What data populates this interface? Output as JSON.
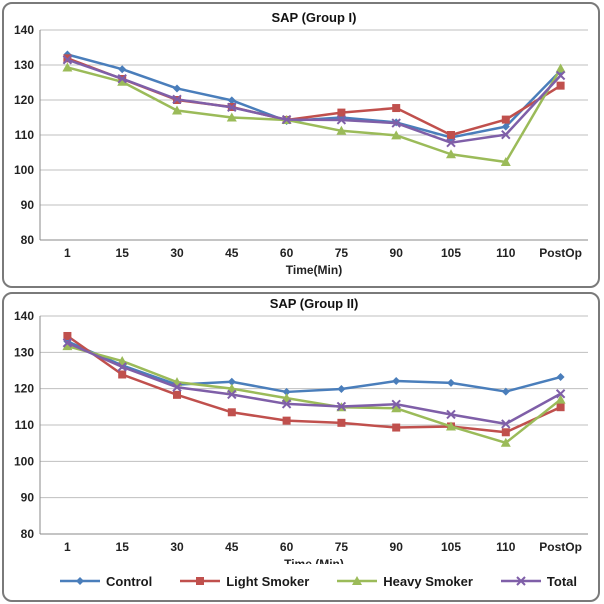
{
  "chart_data": [
    {
      "type": "line",
      "title": "SAP (Group I)",
      "xlabel": "Time(Min)",
      "ylabel": "",
      "categories": [
        "1",
        "15",
        "30",
        "45",
        "60",
        "75",
        "90",
        "105",
        "110",
        "PostOp"
      ],
      "ylim": [
        80,
        140
      ],
      "yticks": [
        80,
        90,
        100,
        110,
        120,
        130,
        140
      ],
      "grid": true,
      "series": [
        {
          "name": "Control",
          "color": "#4a7ebb",
          "marker": "diamond",
          "values": [
            133.0,
            128.8,
            123.3,
            119.9,
            114.0,
            115.0,
            113.6,
            109.3,
            112.4,
            128.4
          ]
        },
        {
          "name": "Light Smoker",
          "color": "#c0504d",
          "marker": "square",
          "values": [
            131.9,
            126.0,
            120.0,
            118.0,
            114.3,
            116.4,
            117.7,
            110.0,
            114.4,
            124.1
          ]
        },
        {
          "name": "Heavy Smoker",
          "color": "#9bbb59",
          "marker": "triangle",
          "values": [
            129.3,
            125.2,
            117.0,
            115.0,
            114.3,
            111.2,
            109.9,
            104.5,
            102.3,
            129.0
          ]
        },
        {
          "name": "Total",
          "color": "#7f5fa8",
          "marker": "x",
          "values": [
            131.5,
            126.1,
            120.2,
            117.9,
            114.4,
            114.3,
            113.4,
            107.8,
            110.1,
            127.0
          ]
        }
      ]
    },
    {
      "type": "line",
      "title": "SAP (Group II)",
      "xlabel": "Time (Min)",
      "ylabel": "",
      "categories": [
        "1",
        "15",
        "30",
        "45",
        "60",
        "75",
        "90",
        "105",
        "110",
        "PostOp"
      ],
      "ylim": [
        80,
        140
      ],
      "yticks": [
        80,
        90,
        100,
        110,
        120,
        130,
        140
      ],
      "grid": true,
      "legend": "bottom",
      "series": [
        {
          "name": "Control",
          "color": "#4a7ebb",
          "marker": "diamond",
          "values": [
            133.0,
            126.4,
            121.1,
            121.9,
            119.1,
            119.9,
            122.1,
            121.6,
            119.2,
            123.2
          ]
        },
        {
          "name": "Light Smoker",
          "color": "#c0504d",
          "marker": "square",
          "values": [
            134.5,
            123.9,
            118.3,
            113.5,
            111.2,
            110.6,
            109.3,
            109.6,
            108.0,
            114.9
          ]
        },
        {
          "name": "Heavy Smoker",
          "color": "#9bbb59",
          "marker": "triangle",
          "values": [
            131.7,
            127.6,
            121.8,
            120.0,
            117.4,
            114.9,
            114.6,
            109.6,
            105.1,
            117.0
          ]
        },
        {
          "name": "Total",
          "color": "#7f5fa8",
          "marker": "x",
          "values": [
            132.6,
            126.0,
            120.4,
            118.4,
            115.8,
            115.1,
            115.7,
            112.9,
            110.3,
            118.6
          ]
        }
      ]
    }
  ]
}
